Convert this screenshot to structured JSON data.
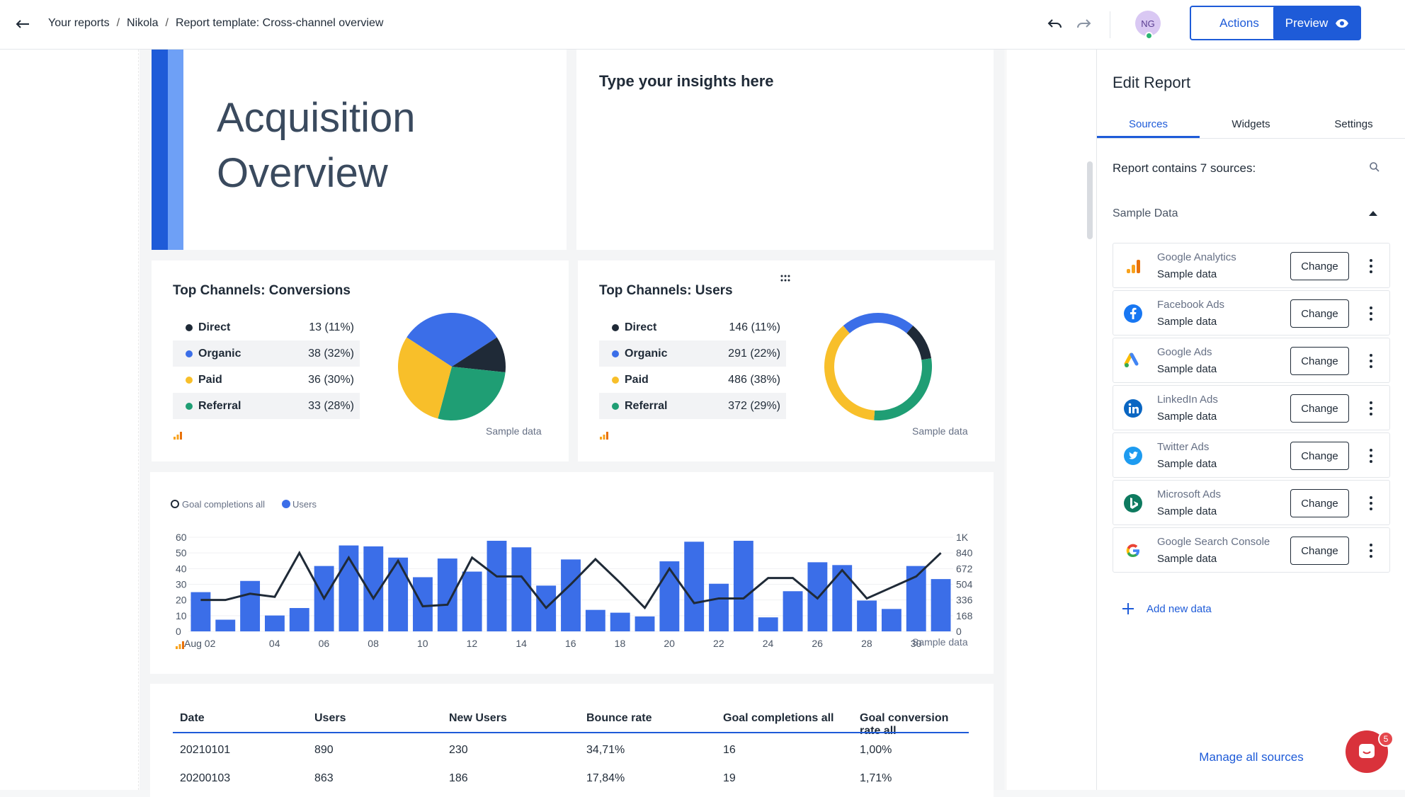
{
  "topbar": {
    "breadcrumb": [
      "Your reports",
      "Nikola",
      "Report template: Cross-channel overview"
    ],
    "separator": "/",
    "avatar_initials": "NG",
    "actions_label": "Actions",
    "preview_label": "Preview"
  },
  "report": {
    "title_line1": "Acquisition",
    "title_line2": "Overview",
    "insights_placeholder": "Type your insights here",
    "sample_label": "Sample data",
    "conversions": {
      "title": "Top Channels: Conversions",
      "rows": [
        {
          "label": "Direct",
          "value": "13 (11%)",
          "color": "#1f2a37"
        },
        {
          "label": "Organic",
          "value": "38 (32%)",
          "color": "#3b6ee8"
        },
        {
          "label": "Paid",
          "value": "36 (30%)",
          "color": "#f8bf2a"
        },
        {
          "label": "Referral",
          "value": "33 (28%)",
          "color": "#1f9e74"
        }
      ]
    },
    "users": {
      "title": "Top Channels: Users",
      "rows": [
        {
          "label": "Direct",
          "value": "146 (11%)",
          "color": "#1f2a37"
        },
        {
          "label": "Organic",
          "value": "291 (22%)",
          "color": "#3b6ee8"
        },
        {
          "label": "Paid",
          "value": "486 (38%)",
          "color": "#f8bf2a"
        },
        {
          "label": "Referral",
          "value": "372 (29%)",
          "color": "#1f9e74"
        }
      ]
    },
    "table": {
      "headers": [
        "Date",
        "Users",
        "New Users",
        "Bounce rate",
        "Goal completions all",
        "Goal conversion rate all"
      ],
      "rows": [
        [
          "20210101",
          "890",
          "230",
          "34,71%",
          "16",
          "1,00%"
        ],
        [
          "20200103",
          "863",
          "186",
          "17,84%",
          "19",
          "1,71%"
        ]
      ]
    }
  },
  "chart_data": [
    {
      "type": "pie",
      "title": "Top Channels: Conversions",
      "categories": [
        "Direct",
        "Organic",
        "Paid",
        "Referral"
      ],
      "values": [
        13,
        38,
        36,
        33
      ],
      "colors": [
        "#1f2a37",
        "#3b6ee8",
        "#f8bf2a",
        "#1f9e74"
      ]
    },
    {
      "type": "pie",
      "title": "Top Channels: Users",
      "donut": true,
      "categories": [
        "Direct",
        "Organic",
        "Paid",
        "Referral"
      ],
      "values": [
        146,
        291,
        486,
        372
      ],
      "colors": [
        "#1f2a37",
        "#3b6ee8",
        "#f8bf2a",
        "#1f9e74"
      ]
    },
    {
      "type": "bar",
      "legend": [
        "Goal completions all",
        "Users"
      ],
      "legend_position": "top-left",
      "x_ticks": [
        "Aug 02",
        "04",
        "06",
        "08",
        "10",
        "12",
        "14",
        "16",
        "18",
        "20",
        "22",
        "24",
        "26",
        "28",
        "30"
      ],
      "x": [
        "01",
        "02",
        "03",
        "04",
        "05",
        "06",
        "07",
        "08",
        "09",
        "10",
        "11",
        "12",
        "13",
        "14",
        "15",
        "16",
        "17",
        "18",
        "19",
        "20",
        "21",
        "22",
        "23",
        "24",
        "25",
        "26",
        "27",
        "28",
        "29",
        "30",
        "31"
      ],
      "series": [
        {
          "name": "Users",
          "axis": "right",
          "type": "bar",
          "values": [
            420,
            125,
            540,
            170,
            250,
            700,
            920,
            910,
            790,
            580,
            780,
            640,
            970,
            900,
            490,
            770,
            230,
            200,
            160,
            750,
            960,
            510,
            970,
            150,
            430,
            740,
            710,
            330,
            240,
            700,
            560
          ]
        },
        {
          "name": "Goal completions all",
          "axis": "left",
          "type": "line",
          "values": [
            20,
            20,
            24,
            22,
            50,
            21,
            47,
            21,
            45,
            16,
            17,
            47,
            35,
            35,
            15,
            30,
            46,
            31,
            15,
            40,
            18,
            21,
            21,
            34,
            34,
            21,
            39,
            21,
            28,
            35,
            50
          ]
        }
      ],
      "y_left_ticks": [
        "0",
        "10",
        "20",
        "30",
        "40",
        "50",
        "60"
      ],
      "y_right_ticks": [
        "0",
        "168",
        "336",
        "504",
        "672",
        "840",
        "1K"
      ],
      "ylim_left": [
        0,
        60
      ],
      "ylim_right": [
        0,
        1008
      ],
      "bar_color": "#3b6ee8",
      "line_color": "#1f2a37"
    }
  ],
  "panel": {
    "title": "Edit Report",
    "tabs": [
      "Sources",
      "Widgets",
      "Settings"
    ],
    "sources_heading": "Report contains 7 sources:",
    "group": "Sample Data",
    "change_label": "Change",
    "sources": [
      {
        "name": "Google Analytics",
        "sub": "Sample data",
        "icon": "google-analytics-icon"
      },
      {
        "name": "Facebook Ads",
        "sub": "Sample data",
        "icon": "facebook-ads-icon"
      },
      {
        "name": "Google Ads",
        "sub": "Sample data",
        "icon": "google-ads-icon"
      },
      {
        "name": "LinkedIn Ads",
        "sub": "Sample data",
        "icon": "linkedin-ads-icon"
      },
      {
        "name": "Twitter Ads",
        "sub": "Sample data",
        "icon": "twitter-ads-icon"
      },
      {
        "name": "Microsoft Ads",
        "sub": "Sample data",
        "icon": "microsoft-ads-icon"
      },
      {
        "name": "Google Search Console",
        "sub": "Sample data",
        "icon": "google-search-console-icon"
      }
    ],
    "add_new": "Add new data",
    "manage": "Manage all sources",
    "chat_badge": "5"
  }
}
